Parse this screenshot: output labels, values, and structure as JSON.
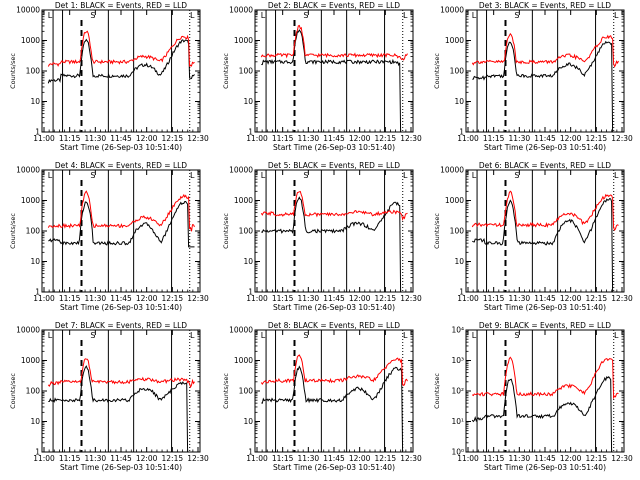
{
  "figure": {
    "background": "#ffffff",
    "event_color": "#000000",
    "lld_color": "#ff0000"
  },
  "chart_data": [
    {
      "type": "line",
      "title": "Det 1: BLACK = Events, RED = LLD",
      "xlabel": "Start Time (26-Sep-03 10:51:40)",
      "ylabel": "Counts/sec",
      "xticks": [
        "11:00",
        "11:15",
        "11:30",
        "11:45",
        "12:00",
        "12:15",
        "12:30"
      ],
      "yticks": [
        "1",
        "10",
        "100",
        "1000",
        "10000"
      ],
      "ylim": [
        1,
        10000
      ],
      "series": [
        {
          "name": "Events",
          "color": "#000000",
          "profile": "std",
          "baseline": 50,
          "peak": 1000,
          "bump": 160,
          "peak2": 1100,
          "bg": 70,
          "drop_from": 0.985,
          "drop_to": 1
        },
        {
          "name": "LLD",
          "color": "#ff0000",
          "profile": "std",
          "baseline": 170,
          "peak": 2000,
          "bump": 300,
          "peak2": 1500,
          "bg": 200
        }
      ],
      "markers": [
        {
          "label": "L",
          "pos": 0.03
        },
        {
          "label": "S",
          "pos": 0.3
        },
        {
          "label": "L",
          "pos": 0.93
        }
      ]
    },
    {
      "type": "line",
      "title": "Det 2: BLACK = Events, RED = LLD",
      "xlabel": "Start Time (26-Sep-03 10:51:40)",
      "ylabel": "Counts/sec",
      "xticks": [
        "11:00",
        "11:15",
        "11:30",
        "11:45",
        "12:00",
        "12:15",
        "12:30"
      ],
      "yticks": [
        "1",
        "10",
        "100",
        "1000",
        "10000"
      ],
      "ylim": [
        1,
        10000
      ],
      "series": [
        {
          "name": "Events",
          "color": "#000000",
          "profile": "flat",
          "baseline": 200,
          "peak": 2200,
          "bump": 220,
          "peak2": 200,
          "bg": 200,
          "drop_from": 0.92,
          "drop_to": 1
        },
        {
          "name": "LLD",
          "color": "#ff0000",
          "profile": "flat",
          "baseline": 330,
          "peak": 3000,
          "bump": 280,
          "peak2": 260,
          "bg": 330
        }
      ],
      "markers": [
        {
          "label": "L",
          "pos": 0.03
        },
        {
          "label": "S",
          "pos": 0.3
        },
        {
          "label": "L",
          "pos": 0.93
        }
      ]
    },
    {
      "type": "line",
      "title": "Det 3: BLACK = Events, RED = LLD",
      "xlabel": "Start Time (26-Sep-03 10:51:40)",
      "ylabel": "Counts/sec",
      "xticks": [
        "11:00",
        "11:15",
        "11:30",
        "11:45",
        "12:00",
        "12:15",
        "12:30"
      ],
      "yticks": [
        "1",
        "10",
        "100",
        "1000",
        "10000"
      ],
      "ylim": [
        1,
        10000
      ],
      "series": [
        {
          "name": "Events",
          "color": "#000000",
          "profile": "std",
          "baseline": 60,
          "peak": 900,
          "bump": 170,
          "peak2": 1000,
          "bg": 70,
          "drop_from": 0.925,
          "drop_to": 1
        },
        {
          "name": "LLD",
          "color": "#ff0000",
          "profile": "std",
          "baseline": 200,
          "peak": 1700,
          "bump": 320,
          "peak2": 1500,
          "bg": 200
        }
      ],
      "markers": [
        {
          "label": "L",
          "pos": 0.03
        },
        {
          "label": "S",
          "pos": 0.3
        },
        {
          "label": "L",
          "pos": 0.93
        }
      ]
    },
    {
      "type": "line",
      "title": "Det 4: BLACK = Events, RED = LLD",
      "xlabel": "Start Time (26-Sep-03 10:51:40)",
      "ylabel": "Counts/sec",
      "xticks": [
        "11:00",
        "11:15",
        "11:30",
        "11:45",
        "12:00",
        "12:15",
        "12:30"
      ],
      "yticks": [
        "1",
        "10",
        "100",
        "1000",
        "10000"
      ],
      "ylim": [
        1,
        10000
      ],
      "series": [
        {
          "name": "Events",
          "color": "#000000",
          "profile": "std",
          "baseline": 50,
          "peak": 900,
          "bump": 170,
          "peak2": 1000,
          "bg": 40,
          "drop_from": 0.925,
          "drop_to": 30
        },
        {
          "name": "LLD",
          "color": "#ff0000",
          "profile": "std",
          "baseline": 150,
          "peak": 1800,
          "bump": 280,
          "peak2": 1500,
          "bg": 150
        }
      ],
      "markers": [
        {
          "label": "L",
          "pos": 0.03
        },
        {
          "label": "S",
          "pos": 0.3
        },
        {
          "label": "L",
          "pos": 0.93
        }
      ]
    },
    {
      "type": "line",
      "title": "Det 5: BLACK = Events, RED = LLD",
      "xlabel": "Start Time (26-Sep-03 10:51:40)",
      "ylabel": "Counts/sec",
      "xticks": [
        "11:00",
        "11:15",
        "11:30",
        "11:45",
        "12:00",
        "12:15",
        "12:30"
      ],
      "yticks": [
        "1",
        "10",
        "100",
        "1000",
        "10000"
      ],
      "ylim": [
        1,
        10000
      ],
      "series": [
        {
          "name": "Events",
          "color": "#000000",
          "profile": "std",
          "baseline": 100,
          "peak": 1200,
          "bump": 180,
          "peak2": 900,
          "bg": 100,
          "drop_from": 0.92,
          "drop_to": 1
        },
        {
          "name": "LLD",
          "color": "#ff0000",
          "profile": "std",
          "baseline": 380,
          "peak": 2200,
          "bump": 420,
          "peak2": 450,
          "bg": 350
        }
      ],
      "markers": [
        {
          "label": "L",
          "pos": 0.03
        },
        {
          "label": "S",
          "pos": 0.3
        },
        {
          "label": "L",
          "pos": 0.93
        }
      ]
    },
    {
      "type": "line",
      "title": "Det 6: BLACK = Events, RED = LLD",
      "xlabel": "Start Time (26-Sep-03 10:51:40)",
      "ylabel": "Counts/sec",
      "xticks": [
        "11:00",
        "11:15",
        "11:30",
        "11:45",
        "12:00",
        "12:15",
        "12:30"
      ],
      "yticks": [
        "1",
        "10",
        "100",
        "1000",
        "10000"
      ],
      "ylim": [
        1,
        10000
      ],
      "series": [
        {
          "name": "Events",
          "color": "#000000",
          "profile": "std",
          "baseline": 50,
          "peak": 900,
          "bump": 220,
          "peak2": 1200,
          "bg": 40,
          "drop_from": 0.925,
          "drop_to": 1
        },
        {
          "name": "LLD",
          "color": "#ff0000",
          "profile": "std",
          "baseline": 160,
          "peak": 1800,
          "bump": 380,
          "peak2": 1600,
          "bg": 160
        }
      ],
      "markers": [
        {
          "label": "L",
          "pos": 0.03
        },
        {
          "label": "S",
          "pos": 0.3
        },
        {
          "label": "L",
          "pos": 0.93
        }
      ]
    },
    {
      "type": "line",
      "title": "Det 7: BLACK = Events, RED = LLD",
      "xlabel": "Start Time (26-Sep-03 10:51:40)",
      "ylabel": "Counts/sec",
      "xticks": [
        "11:00",
        "11:15",
        "11:30",
        "11:45",
        "12:00",
        "12:15",
        "12:30"
      ],
      "yticks": [
        "1",
        "10",
        "100",
        "1000",
        "10000"
      ],
      "ylim": [
        1,
        10000
      ],
      "series": [
        {
          "name": "Events",
          "color": "#000000",
          "profile": "std",
          "baseline": 50,
          "peak": 600,
          "bump": 120,
          "peak2": 200,
          "bg": 50,
          "drop_from": 0.92,
          "drop_to": 1
        },
        {
          "name": "LLD",
          "color": "#ff0000",
          "profile": "std",
          "baseline": 180,
          "peak": 1200,
          "bump": 240,
          "peak2": 250,
          "bg": 200
        }
      ],
      "markers": [
        {
          "label": "L",
          "pos": 0.03
        },
        {
          "label": "S",
          "pos": 0.3
        },
        {
          "label": "L",
          "pos": 0.93
        }
      ]
    },
    {
      "type": "line",
      "title": "Det 8: BLACK = Events, RED = LLD",
      "xlabel": "Start Time (26-Sep-03 10:51:40)",
      "ylabel": "Counts/sec",
      "xticks": [
        "11:00",
        "11:15",
        "11:30",
        "11:45",
        "12:00",
        "12:15",
        "12:30"
      ],
      "yticks": [
        "1",
        "10",
        "100",
        "1000",
        "10000"
      ],
      "ylim": [
        1,
        10000
      ],
      "series": [
        {
          "name": "Events",
          "color": "#000000",
          "profile": "std",
          "baseline": 50,
          "peak": 600,
          "bump": 120,
          "peak2": 600,
          "bg": 50,
          "drop_from": 0.93,
          "drop_to": 1
        },
        {
          "name": "LLD",
          "color": "#ff0000",
          "profile": "std",
          "baseline": 200,
          "peak": 1500,
          "bump": 300,
          "peak2": 1200,
          "bg": 220
        }
      ],
      "markers": [
        {
          "label": "L",
          "pos": 0.03
        },
        {
          "label": "S",
          "pos": 0.3
        },
        {
          "label": "L",
          "pos": 0.93
        }
      ]
    },
    {
      "type": "line",
      "title": "Det 9: BLACK = Events, RED = LLD",
      "xlabel": "Start Time (26-Sep-03 10:51:40)",
      "ylabel": "Counts/sec",
      "xticks": [
        "11:00",
        "11:15",
        "11:30",
        "11:45",
        "12:00",
        "12:15",
        "12:30"
      ],
      "yticks": [
        "10^0",
        "10^1",
        "10^2",
        "10^3",
        "10^4"
      ],
      "ylim": [
        1,
        10000
      ],
      "series": [
        {
          "name": "Events",
          "color": "#000000",
          "profile": "std",
          "baseline": 12,
          "peak": 250,
          "bump": 40,
          "peak2": 300,
          "bg": 15,
          "drop_from": 0.92,
          "drop_to": 1
        },
        {
          "name": "LLD",
          "color": "#ff0000",
          "profile": "std",
          "baseline": 80,
          "peak": 1200,
          "bump": 150,
          "peak2": 1300,
          "bg": 80
        }
      ],
      "markers": [
        {
          "label": "L",
          "pos": 0.03
        },
        {
          "label": "S",
          "pos": 0.3
        },
        {
          "label": "L",
          "pos": 0.93
        }
      ]
    }
  ]
}
